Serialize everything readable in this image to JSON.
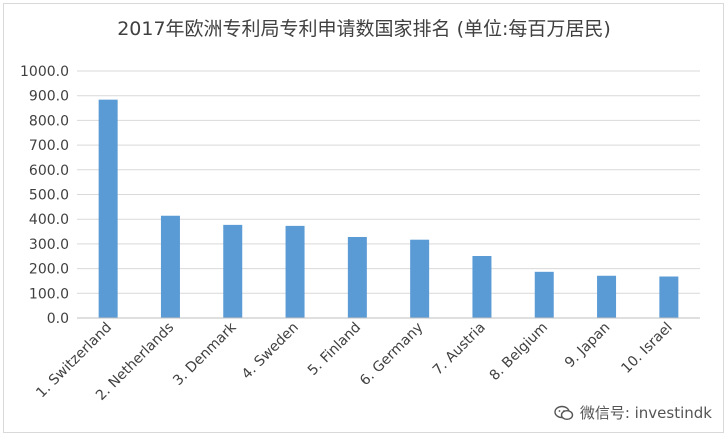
{
  "chart_data": {
    "type": "bar",
    "title": "2017年欧洲专利局专利申请数国家排名 (单位:每百万居民)",
    "categories": [
      "1. Switzerland",
      "2. Netherlands",
      "3. Denmark",
      "4. Sweden",
      "5. Finland",
      "6. Germany",
      "7. Austria",
      "8. Belgium",
      "9. Japan",
      "10. Israel"
    ],
    "series": [
      {
        "values": [
          884,
          414,
          377,
          373,
          328,
          317,
          251,
          187,
          171,
          168
        ]
      }
    ],
    "ylim": [
      0,
      1000
    ],
    "yticks": [
      "0.0",
      "100.0",
      "200.0",
      "300.0",
      "400.0",
      "500.0",
      "600.0",
      "700.0",
      "800.0",
      "900.0",
      "1000.0"
    ],
    "grid": true,
    "legend": "none",
    "bar_color": "#5b9bd5",
    "grid_color": "#d9d9d9"
  },
  "watermark": {
    "text": "微信号: investindk",
    "icon": "wechat-icon"
  }
}
